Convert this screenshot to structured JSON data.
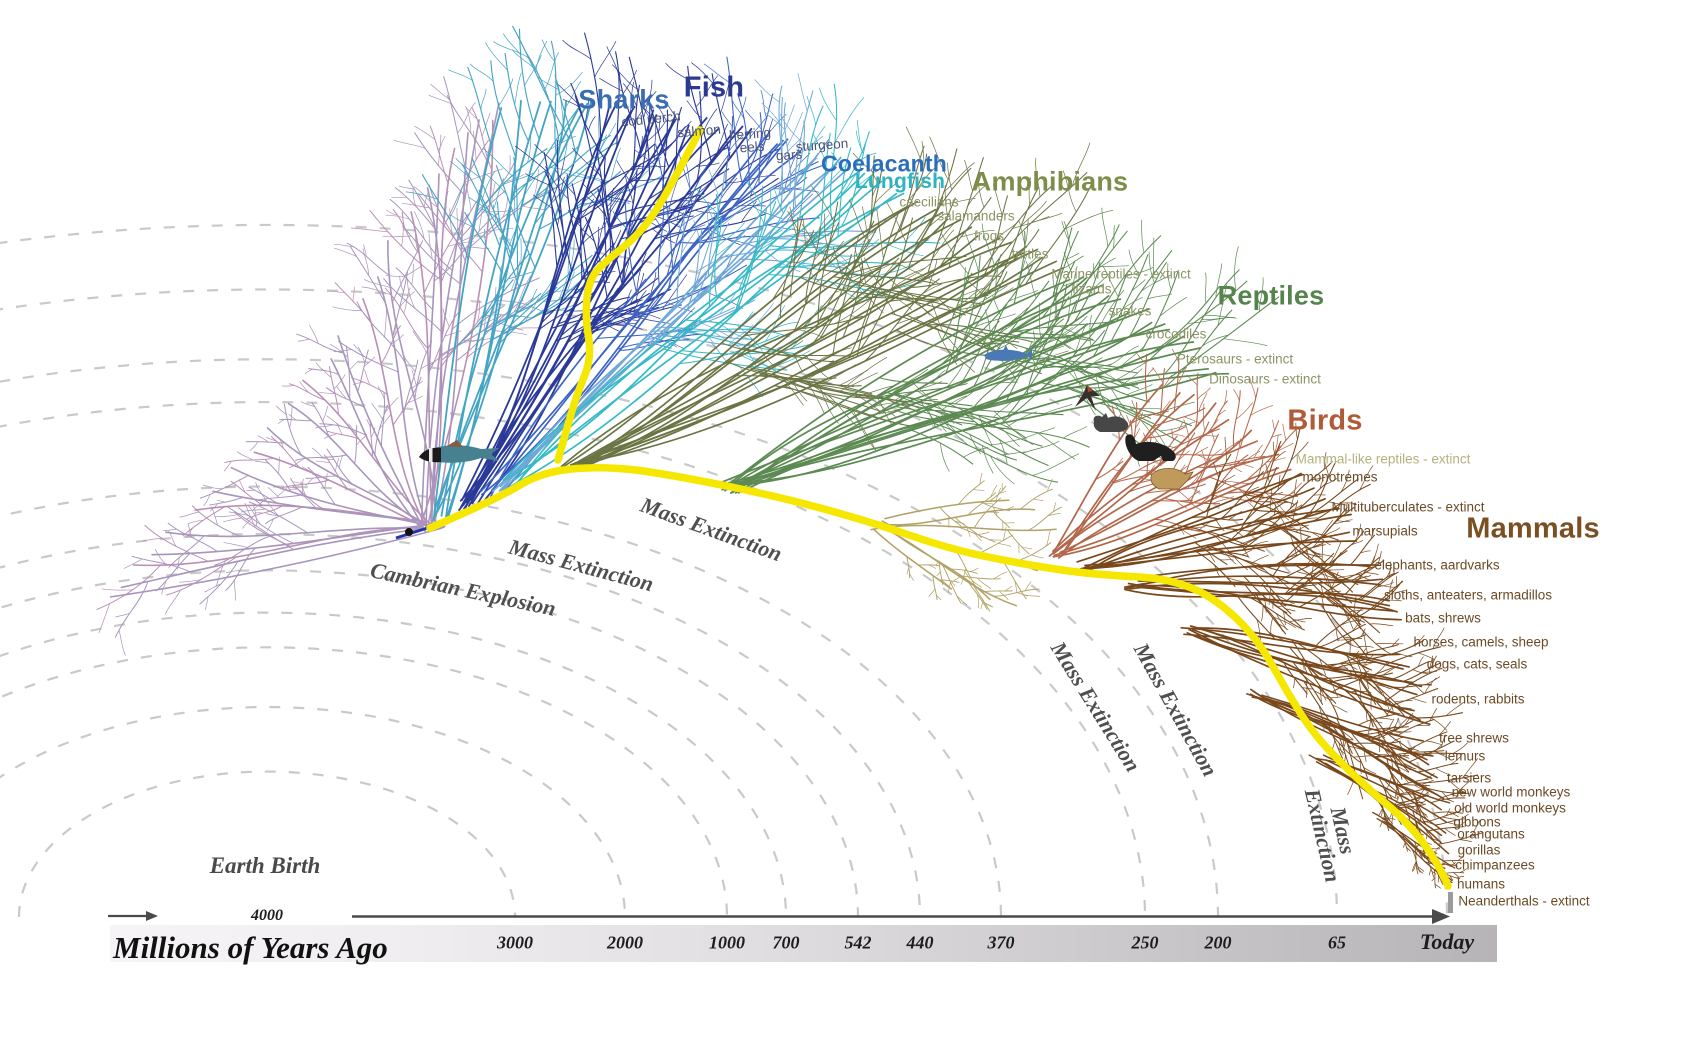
{
  "clade_labels": [
    {
      "text": "Sharks",
      "color": "#3a6cb0"
    },
    {
      "text": "Fish",
      "color": "#2b3a8f"
    },
    {
      "text": "Coelacanth",
      "color": "#2a6ebb"
    },
    {
      "text": "Lungfish",
      "color": "#2fb3c0"
    },
    {
      "text": "Amphibians",
      "color": "#7d8d4a"
    },
    {
      "text": "Reptiles",
      "color": "#55854d"
    },
    {
      "text": "Birds",
      "color": "#b05a38"
    },
    {
      "text": "Mammals",
      "color": "#7a4f21"
    }
  ],
  "species_labels": [
    {
      "text": "cod perch",
      "color": "#49547a"
    },
    {
      "text": "salmon",
      "color": "#49547a"
    },
    {
      "text": "herring",
      "color": "#49547a"
    },
    {
      "text": "eels",
      "color": "#49547a"
    },
    {
      "text": "gars",
      "color": "#49547a"
    },
    {
      "text": "sturgeon",
      "color": "#49547a"
    },
    {
      "text": "caecilians",
      "color": "#8b9464"
    },
    {
      "text": "salamanders",
      "color": "#8b9464"
    },
    {
      "text": "frogs",
      "color": "#8b9464"
    },
    {
      "text": "turtles",
      "color": "#8b9464"
    },
    {
      "text": "Marine reptiles - extinct",
      "color": "#8b9464"
    },
    {
      "text": "lizards",
      "color": "#8b9464"
    },
    {
      "text": "snakes",
      "color": "#8b9464"
    },
    {
      "text": "crocodiles",
      "color": "#8b9464"
    },
    {
      "text": "Pterosaurs - extinct",
      "color": "#8b9464"
    },
    {
      "text": "Dinosaurs - extinct",
      "color": "#8b9464"
    },
    {
      "text": "Mammal-like reptiles - extinct",
      "color": "#b3b27d"
    },
    {
      "text": "monotremes",
      "color": "#6b4a26"
    },
    {
      "text": "Multituberculates - extinct",
      "color": "#6b4a26"
    },
    {
      "text": "marsupials",
      "color": "#6b4a26"
    },
    {
      "text": "elephants, aardvarks",
      "color": "#6b4a26"
    },
    {
      "text": "sloths, anteaters, armadillos",
      "color": "#6b4a26"
    },
    {
      "text": "bats, shrews",
      "color": "#6b4a26"
    },
    {
      "text": "horses, camels, sheep",
      "color": "#6b4a26"
    },
    {
      "text": "dogs, cats, seals",
      "color": "#6b4a26"
    },
    {
      "text": "rodents, rabbits",
      "color": "#6b4a26"
    },
    {
      "text": "tree shrews",
      "color": "#6b4a26"
    },
    {
      "text": "lemurs",
      "color": "#6b4a26"
    },
    {
      "text": "tarsiers",
      "color": "#6b4a26"
    },
    {
      "text": "new world monkeys",
      "color": "#6b4a26"
    },
    {
      "text": "old world monkeys",
      "color": "#6b4a26"
    },
    {
      "text": "gibbons",
      "color": "#6b4a26"
    },
    {
      "text": "orangutans",
      "color": "#6b4a26"
    },
    {
      "text": "gorillas",
      "color": "#6b4a26"
    },
    {
      "text": "chimpanzees",
      "color": "#6b4a26"
    },
    {
      "text": "humans",
      "color": "#6b4a26"
    },
    {
      "text": "Neanderthals - extinct",
      "color": "#6b4a26"
    }
  ],
  "event_labels": [
    {
      "text": "Mass Extinction"
    },
    {
      "text": "Mass Extinction"
    },
    {
      "text": "Cambrian Explosion"
    },
    {
      "text": "Mass Extinction"
    },
    {
      "text": "Mass Extinction"
    },
    {
      "text": "Mass Extinction"
    }
  ],
  "earth_birth": "Earth Birth",
  "timeline": {
    "title": "Millions of Years Ago",
    "ticks": [
      "4000",
      "3000",
      "2000",
      "1000",
      "700",
      "542",
      "440",
      "370",
      "250",
      "200",
      "65",
      "Today"
    ]
  },
  "colors": {
    "lineage_highlight": "#f5e700",
    "time_arc": "#c9c9c9",
    "axis": "#4a4a4a",
    "branches": {
      "early_life": "#a795bc",
      "early_life_alt": "#b98fb5",
      "sharks": "#45a4c4",
      "fish": "#2b3a99",
      "fish_royal": "#3c64c4",
      "coelacanth": "#6fa8d8",
      "lungfish": "#35bac6",
      "amphibians": "#6b7544",
      "reptiles": "#5c8a52",
      "mammal_like": "#b0a266",
      "birds": "#b2674a",
      "mammals": "#78481c"
    }
  },
  "illustrations": [
    {
      "name": "armored-fish"
    },
    {
      "name": "marine-reptile"
    },
    {
      "name": "pterosaur"
    },
    {
      "name": "triceratops"
    },
    {
      "name": "sauropod"
    },
    {
      "name": "tyrannosaur"
    }
  ]
}
